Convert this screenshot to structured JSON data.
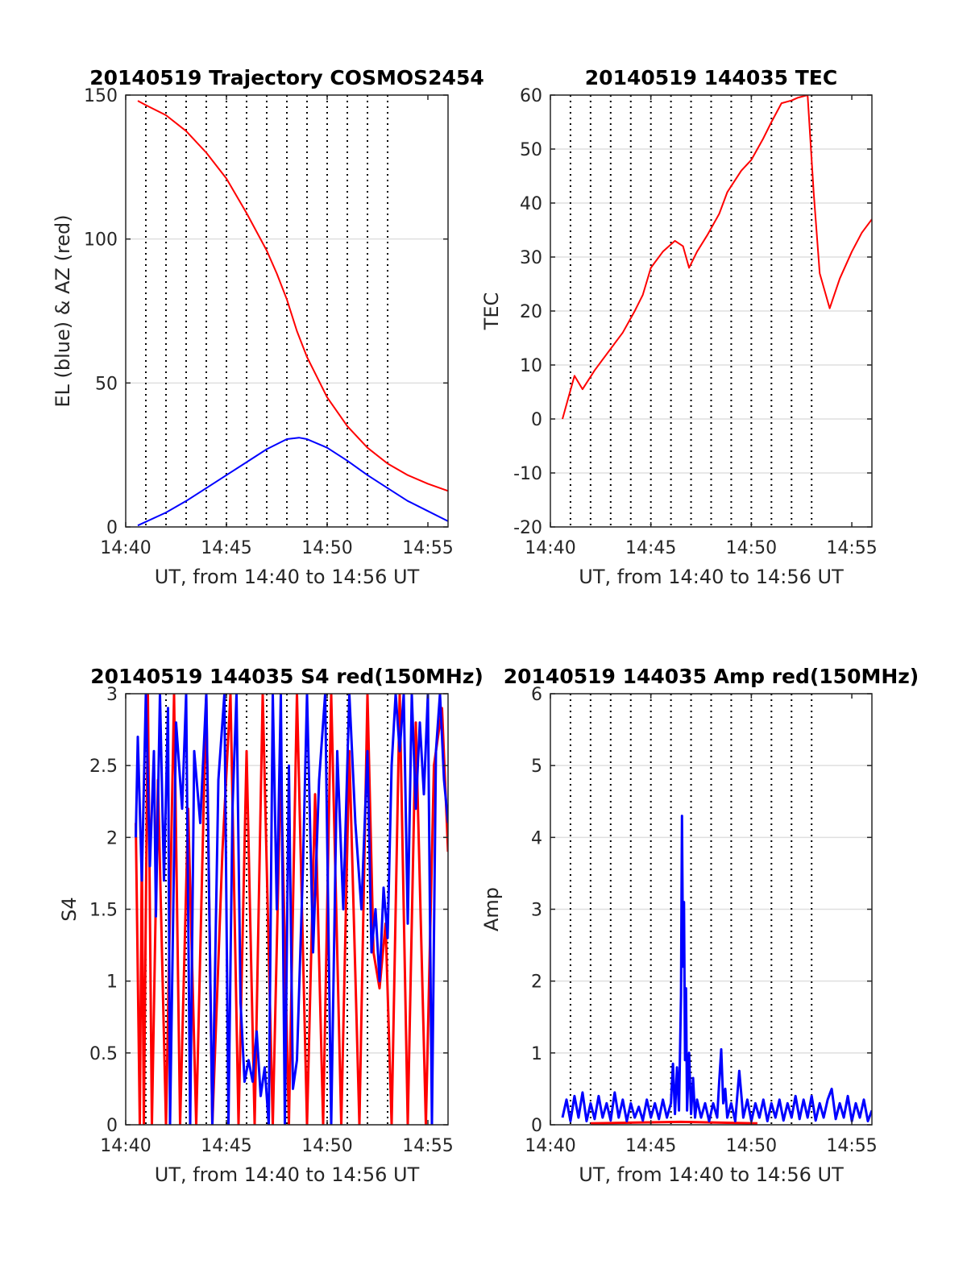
{
  "chart_data": [
    {
      "type": "line",
      "title": "20140519 Trajectory COSMOS2454",
      "xlabel": "UT, from 14:40 to 14:56 UT",
      "ylabel": "EL (blue) & AZ (red)",
      "xlim": [
        0,
        16
      ],
      "ylim": [
        0,
        150
      ],
      "xticks": [
        0,
        5,
        10,
        15
      ],
      "xtick_labels": [
        "14:40",
        "14:45",
        "14:50",
        "14:55"
      ],
      "yticks": [
        0,
        50,
        100,
        150
      ],
      "ytick_labels": [
        "0",
        "50",
        "100",
        "150"
      ],
      "grid": "on",
      "vertical_dotted_lines": [
        1,
        2,
        3,
        4,
        5,
        6,
        7,
        8,
        9,
        10,
        11,
        12,
        13
      ],
      "series": [
        {
          "color": "#ff0000",
          "x": [
            0.6,
            1,
            2,
            3,
            4,
            5,
            6,
            7,
            7.5,
            8,
            8.5,
            9,
            10,
            11,
            12,
            13,
            14,
            15,
            16
          ],
          "values": [
            148,
            146.5,
            143,
            137.5,
            130,
            121,
            109,
            96,
            88,
            79,
            68,
            59,
            45,
            35,
            27.5,
            22,
            18,
            15,
            12.5
          ]
        },
        {
          "color": "#0000ff",
          "x": [
            0.6,
            2,
            3,
            4,
            5,
            6,
            7,
            8,
            8.6,
            9,
            10,
            11,
            12,
            13,
            14,
            15,
            16
          ],
          "values": [
            0.5,
            5,
            9,
            13.5,
            18,
            22.5,
            27,
            30.5,
            31,
            30.5,
            27.5,
            23,
            18,
            13.5,
            9,
            5.5,
            2
          ]
        }
      ]
    },
    {
      "type": "line",
      "title": "20140519 144035 TEC",
      "xlabel": "UT, from 14:40 to 14:56 UT",
      "ylabel": "TEC",
      "xlim": [
        0,
        16
      ],
      "ylim": [
        -20,
        60
      ],
      "xticks": [
        0,
        5,
        10,
        15
      ],
      "xtick_labels": [
        "14:40",
        "14:45",
        "14:50",
        "14:55"
      ],
      "yticks": [
        -20,
        -10,
        0,
        10,
        20,
        30,
        40,
        50,
        60
      ],
      "ytick_labels": [
        "-20",
        "-10",
        "0",
        "10",
        "20",
        "30",
        "40",
        "50",
        "60"
      ],
      "grid": "on",
      "vertical_dotted_lines": [
        1,
        2,
        3,
        4,
        5,
        6,
        7,
        8,
        9,
        10,
        11,
        12,
        13
      ],
      "series": [
        {
          "color": "#ff0000",
          "x": [
            0.6,
            1.2,
            1.6,
            2.2,
            2.6,
            3.2,
            3.6,
            4.2,
            4.6,
            5.0,
            5.6,
            6.2,
            6.6,
            6.9,
            7.3,
            7.8,
            8.4,
            8.8,
            9.5,
            10.0,
            10.6,
            11.0,
            11.5,
            12.0,
            12.3,
            12.8,
            13.1,
            13.4,
            13.9,
            14.4,
            15.0,
            15.5,
            16.0
          ],
          "values": [
            0,
            8,
            5.5,
            9,
            11,
            14,
            16,
            20,
            23,
            28,
            31,
            33,
            32,
            28,
            31,
            34,
            38,
            42,
            46,
            48,
            52,
            55,
            58.5,
            59,
            59.5,
            60,
            42,
            27,
            20.5,
            26,
            31,
            34.5,
            37
          ]
        }
      ]
    },
    {
      "type": "line",
      "title": "20140519 144035 S4 red(150MHz)",
      "xlabel": "UT, from 14:40 to 14:56 UT",
      "ylabel": "S4",
      "xlim": [
        0,
        16
      ],
      "ylim": [
        0,
        3
      ],
      "xticks": [
        0,
        5,
        10,
        15
      ],
      "xtick_labels": [
        "14:40",
        "14:45",
        "14:50",
        "14:55"
      ],
      "yticks": [
        0,
        0.5,
        1,
        1.5,
        2,
        2.5,
        3
      ],
      "ytick_labels": [
        "0",
        "0.5",
        "1",
        "1.5",
        "2",
        "2.5",
        "3"
      ],
      "grid": "on",
      "vertical_dotted_lines": [
        1,
        2,
        3,
        4,
        5,
        6,
        7,
        8,
        9,
        10,
        11,
        12,
        13
      ],
      "series": [
        {
          "color": "#ff0000",
          "x": [
            0.5,
            0.7,
            0.8,
            0.9,
            1.1,
            1.3,
            1.6,
            2.0,
            2.4,
            2.7,
            3.1,
            3.5,
            4.0,
            4.3,
            4.8,
            5.2,
            5.6,
            6.0,
            6.4,
            6.8,
            7.3,
            7.7,
            8.1,
            8.5,
            9.0,
            9.4,
            9.8,
            10.2,
            10.7,
            11.1,
            11.6,
            12.0,
            12.3,
            12.6,
            12.9,
            13.2,
            13.6,
            14.0,
            14.4,
            14.9,
            15.3,
            15.7,
            16.0
          ],
          "values": [
            2.1,
            0,
            1.9,
            0,
            3,
            0,
            2.4,
            0,
            3,
            0,
            2.2,
            0,
            3,
            0,
            1.9,
            3,
            0,
            2.6,
            0,
            3,
            0,
            2.5,
            0,
            3,
            0,
            2.3,
            0,
            3,
            0,
            2.6,
            0,
            3,
            1.2,
            0.95,
            1.4,
            0,
            3,
            0,
            2.8,
            0,
            2.5,
            2.9,
            1.9
          ]
        },
        {
          "color": "#0000ff",
          "x": [
            0.5,
            0.6,
            0.8,
            1.0,
            1.2,
            1.4,
            1.5,
            1.7,
            1.9,
            2.1,
            2.2,
            2.5,
            2.8,
            3.0,
            3.2,
            3.4,
            3.7,
            4.0,
            4.3,
            4.6,
            4.9,
            5.1,
            5.3,
            5.5,
            5.7,
            5.9,
            6.1,
            6.3,
            6.5,
            6.7,
            6.9,
            7.1,
            7.3,
            7.5,
            7.7,
            7.9,
            8.1,
            8.3,
            8.5,
            8.8,
            9.0,
            9.3,
            9.6,
            9.9,
            10.2,
            10.5,
            10.8,
            11.1,
            11.4,
            11.7,
            12.0,
            12.2,
            12.4,
            12.6,
            12.8,
            13.0,
            13.2,
            13.4,
            13.6,
            13.8,
            14.0,
            14.2,
            14.4,
            14.6,
            14.8,
            15.0,
            15.2,
            15.4,
            15.6,
            15.8,
            16.0
          ],
          "values": [
            2.0,
            2.7,
            1.7,
            3,
            1.8,
            2.6,
            1.45,
            3,
            1.7,
            2.9,
            0,
            2.8,
            2.2,
            3,
            0,
            2.6,
            2.1,
            3,
            0,
            2.4,
            3,
            0,
            2.2,
            3,
            0.85,
            0.3,
            0.45,
            0.3,
            0.65,
            0.2,
            0.4,
            0,
            3,
            1.5,
            3,
            0,
            2.5,
            0.25,
            0.45,
            1.8,
            3,
            1.2,
            2.4,
            3,
            0,
            2.6,
            1.5,
            3,
            2.1,
            1.5,
            2.6,
            1.2,
            1.5,
            1.0,
            1.65,
            1.3,
            2.5,
            3,
            2.6,
            3,
            1.4,
            3,
            2.2,
            2.8,
            2.3,
            3,
            0,
            2.6,
            3,
            2.4,
            2.1
          ]
        }
      ]
    },
    {
      "type": "line",
      "title": "20140519 144035 Amp red(150MHz)",
      "xlabel": "UT, from 14:40 to 14:56 UT",
      "ylabel": "Amp",
      "xlim": [
        0,
        16
      ],
      "ylim": [
        0,
        6
      ],
      "xticks": [
        0,
        5,
        10,
        15
      ],
      "xtick_labels": [
        "14:40",
        "14:45",
        "14:50",
        "14:55"
      ],
      "yticks": [
        0,
        1,
        2,
        3,
        4,
        5,
        6
      ],
      "ytick_labels": [
        "0",
        "1",
        "2",
        "3",
        "4",
        "5",
        "6"
      ],
      "grid": "on",
      "vertical_dotted_lines": [
        1,
        2,
        3,
        4,
        5,
        6,
        7,
        8,
        9,
        10,
        11,
        12,
        13
      ],
      "series": [
        {
          "color": "#ff0000",
          "x": [
            2.0,
            4.2,
            6.5,
            8.3,
            10.3
          ],
          "values": [
            0.02,
            0.03,
            0.04,
            0.03,
            0.02
          ]
        },
        {
          "color": "#0000ff",
          "x": [
            0.6,
            0.8,
            1.0,
            1.2,
            1.4,
            1.6,
            1.8,
            2.0,
            2.2,
            2.4,
            2.6,
            2.8,
            3.0,
            3.2,
            3.4,
            3.6,
            3.8,
            4.0,
            4.2,
            4.4,
            4.6,
            4.8,
            5.0,
            5.2,
            5.4,
            5.6,
            5.8,
            6.0,
            6.1,
            6.2,
            6.3,
            6.4,
            6.5,
            6.55,
            6.6,
            6.65,
            6.7,
            6.75,
            6.8,
            6.9,
            7.0,
            7.1,
            7.2,
            7.3,
            7.5,
            7.7,
            7.9,
            8.1,
            8.3,
            8.4,
            8.5,
            8.6,
            8.7,
            8.8,
            9.0,
            9.2,
            9.4,
            9.6,
            9.8,
            10.0,
            10.2,
            10.4,
            10.6,
            10.8,
            11.0,
            11.2,
            11.4,
            11.6,
            11.8,
            12.0,
            12.2,
            12.4,
            12.6,
            12.8,
            13.0,
            13.2,
            13.4,
            13.6,
            13.8,
            14.0,
            14.2,
            14.4,
            14.6,
            14.8,
            15.0,
            15.2,
            15.4,
            15.6,
            15.8,
            16.0
          ],
          "values": [
            0.1,
            0.35,
            0.05,
            0.4,
            0.1,
            0.45,
            0.05,
            0.3,
            0.08,
            0.4,
            0.1,
            0.3,
            0.06,
            0.45,
            0.1,
            0.35,
            0.05,
            0.3,
            0.1,
            0.25,
            0.06,
            0.35,
            0.1,
            0.3,
            0.08,
            0.35,
            0.1,
            0.3,
            0.85,
            0.15,
            0.8,
            0.2,
            1.8,
            4.3,
            2.2,
            3.1,
            0.9,
            1.9,
            0.2,
            1.0,
            0.15,
            0.65,
            0.1,
            0.35,
            0.1,
            0.3,
            0.05,
            0.3,
            0.1,
            0.6,
            1.05,
            0.3,
            0.5,
            0.1,
            0.3,
            0.05,
            0.75,
            0.1,
            0.35,
            0.05,
            0.3,
            0.1,
            0.35,
            0.05,
            0.3,
            0.1,
            0.35,
            0.06,
            0.3,
            0.1,
            0.4,
            0.08,
            0.35,
            0.1,
            0.4,
            0.06,
            0.3,
            0.1,
            0.35,
            0.5,
            0.08,
            0.3,
            0.1,
            0.4,
            0.05,
            0.3,
            0.1,
            0.35,
            0.05,
            0.2
          ]
        }
      ]
    }
  ]
}
